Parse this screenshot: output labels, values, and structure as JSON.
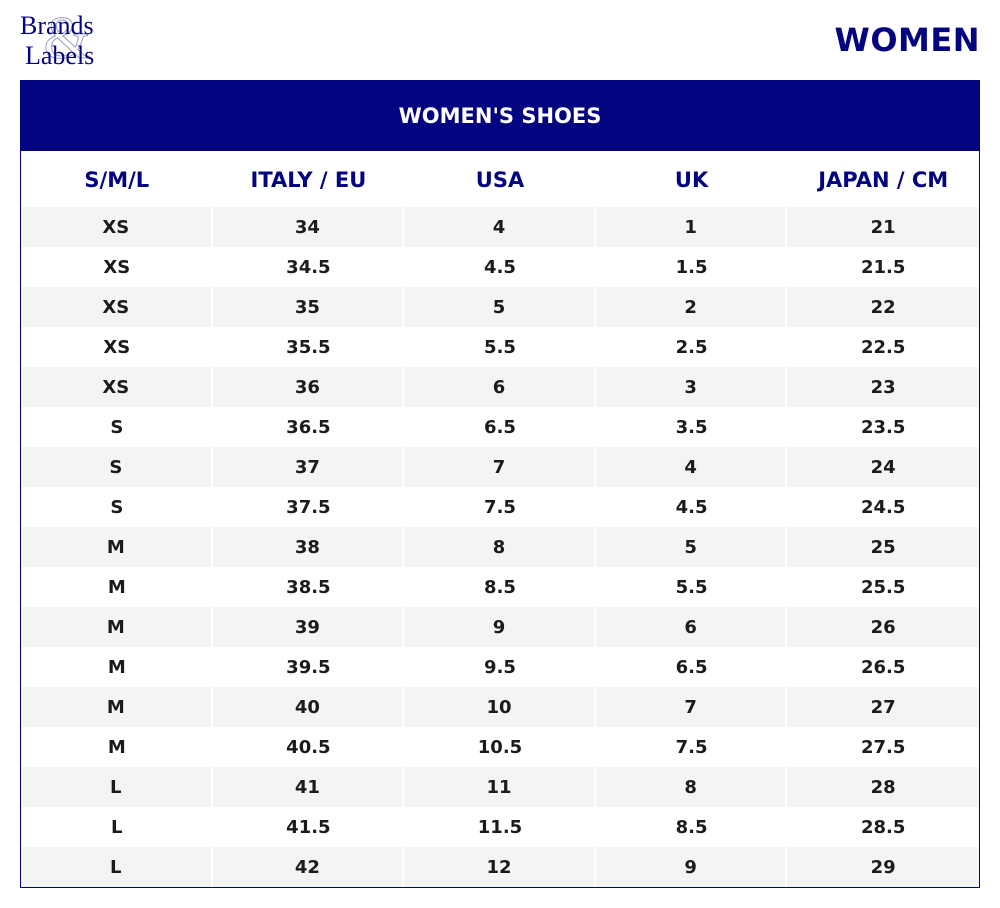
{
  "logo": {
    "line1": "Brands",
    "line2": "Labels",
    "ampersand": "&"
  },
  "page_heading": "WOMEN",
  "table": {
    "title": "WOMEN'S SHOES",
    "columns": [
      "S/M/L",
      "ITALY / EU",
      "USA",
      "UK",
      "JAPAN / CM"
    ],
    "rows": [
      [
        "XS",
        "34",
        "4",
        "1",
        "21"
      ],
      [
        "XS",
        "34.5",
        "4.5",
        "1.5",
        "21.5"
      ],
      [
        "XS",
        "35",
        "5",
        "2",
        "22"
      ],
      [
        "XS",
        "35.5",
        "5.5",
        "2.5",
        "22.5"
      ],
      [
        "XS",
        "36",
        "6",
        "3",
        "23"
      ],
      [
        "S",
        "36.5",
        "6.5",
        "3.5",
        "23.5"
      ],
      [
        "S",
        "37",
        "7",
        "4",
        "24"
      ],
      [
        "S",
        "37.5",
        "7.5",
        "4.5",
        "24.5"
      ],
      [
        "M",
        "38",
        "8",
        "5",
        "25"
      ],
      [
        "M",
        "38.5",
        "8.5",
        "5.5",
        "25.5"
      ],
      [
        "M",
        "39",
        "9",
        "6",
        "26"
      ],
      [
        "M",
        "39.5",
        "9.5",
        "6.5",
        "26.5"
      ],
      [
        "M",
        "40",
        "10",
        "7",
        "27"
      ],
      [
        "M",
        "40.5",
        "10.5",
        "7.5",
        "27.5"
      ],
      [
        "L",
        "41",
        "11",
        "8",
        "28"
      ],
      [
        "L",
        "41.5",
        "11.5",
        "8.5",
        "28.5"
      ],
      [
        "L",
        "42",
        "12",
        "9",
        "29"
      ]
    ]
  },
  "colors": {
    "brand": "#03047f",
    "stripe": "#f4f4f4",
    "text": "#1b1b1b"
  }
}
